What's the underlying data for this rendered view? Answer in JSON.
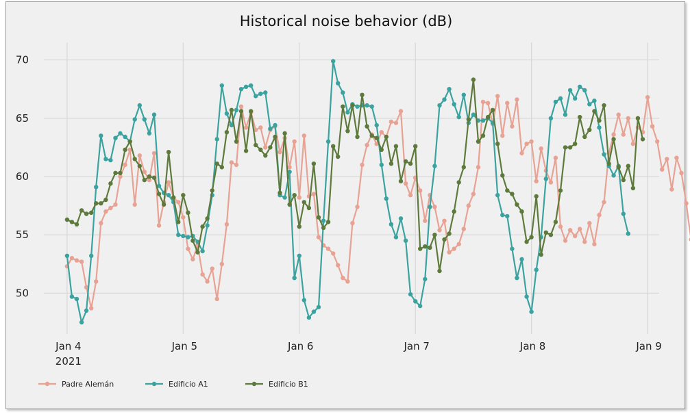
{
  "chart_data": {
    "type": "line",
    "title": "Historical noise behavior (dB)",
    "xlabel": "",
    "ylabel": "",
    "x_start": "2021-01-04T00:00",
    "x_step_hours": 1,
    "xlim_days": [
      -0.2,
      5.1
    ],
    "ylim": [
      46.5,
      71.5
    ],
    "grid": true,
    "legend_position": "bottom-left",
    "x_ticks": [
      {
        "value": 0,
        "label": "Jan 4",
        "sublabel": "2021"
      },
      {
        "value": 1,
        "label": "Jan 5",
        "sublabel": ""
      },
      {
        "value": 2,
        "label": "Jan 6",
        "sublabel": ""
      },
      {
        "value": 3,
        "label": "Jan 7",
        "sublabel": ""
      },
      {
        "value": 4,
        "label": "Jan 8",
        "sublabel": ""
      },
      {
        "value": 5,
        "label": "Jan 9",
        "sublabel": ""
      }
    ],
    "y_ticks": [
      {
        "value": 50,
        "label": "50"
      },
      {
        "value": 55,
        "label": "55"
      },
      {
        "value": 60,
        "label": "60"
      },
      {
        "value": 65,
        "label": "65"
      },
      {
        "value": 70,
        "label": "70"
      }
    ],
    "series": [
      {
        "name": "Padre Alemán",
        "color": "#e8a294",
        "values": [
          52.3,
          53.0,
          52.8,
          52.7,
          50.5,
          48.7,
          51.0,
          56.0,
          57.0,
          57.3,
          57.6,
          60.0,
          61.0,
          62.3,
          57.6,
          61.8,
          60.4,
          59.7,
          62.0,
          55.8,
          57.8,
          59.5,
          58.2,
          57.8,
          56.5,
          53.8,
          52.9,
          54.1,
          51.6,
          51.0,
          52.1,
          49.5,
          52.5,
          55.9,
          61.2,
          61.0,
          66.0,
          64.2,
          65.5,
          64.0,
          64.2,
          62.5,
          64.0,
          64.3,
          62.1,
          63.3,
          60.8,
          63.0,
          58.2,
          63.5,
          58.3,
          58.5,
          54.8,
          54.1,
          53.8,
          53.4,
          52.4,
          51.3,
          51.0,
          56.0,
          57.4,
          61.0,
          62.7,
          63.6,
          62.8,
          63.8,
          63.4,
          64.7,
          64.6,
          65.6,
          59.4,
          58.4,
          59.9,
          58.8,
          56.2,
          58.4,
          57.4,
          55.4,
          56.2,
          53.5,
          53.8,
          54.2,
          55.5,
          57.5,
          58.5,
          60.8,
          66.4,
          66.3,
          64.5,
          66.9,
          63.5,
          66.3,
          64.3,
          66.6,
          62.0,
          62.8,
          63.0,
          59.6,
          62.4,
          60.5,
          59.5,
          61.6,
          55.7,
          54.5,
          55.4,
          54.9,
          55.5,
          54.4,
          56.0,
          54.2,
          56.7,
          57.8,
          62.0,
          63.6,
          65.3,
          63.6,
          65.0,
          62.8,
          64.2,
          63.8,
          66.8,
          64.3,
          63.0,
          60.6,
          61.5,
          58.9,
          61.6,
          60.3,
          57.7,
          54.6
        ]
      },
      {
        "name": "Edificio A1",
        "color": "#3aa39f",
        "values": [
          53.2,
          49.7,
          49.5,
          47.5,
          48.5,
          53.2,
          59.1,
          63.5,
          61.5,
          61.4,
          63.3,
          63.7,
          63.4,
          63.0,
          64.9,
          66.1,
          64.9,
          63.7,
          65.3,
          59.2,
          58.6,
          58.4,
          57.8,
          55.0,
          54.9,
          54.8,
          54.9,
          54.4,
          53.6,
          55.8,
          58.4,
          63.2,
          67.8,
          65.4,
          64.4,
          65.7,
          67.5,
          67.7,
          67.8,
          66.9,
          67.1,
          67.2,
          64.1,
          64.4,
          58.4,
          58.2,
          60.4,
          51.3,
          53.2,
          49.4,
          47.9,
          48.4,
          48.8,
          56.2,
          63.0,
          69.9,
          68.0,
          67.2,
          65.5,
          66.2,
          66.0,
          66.1,
          66.1,
          66.0,
          64.4,
          61.0,
          58.1,
          55.9,
          54.8,
          56.4,
          54.5,
          49.9,
          49.3,
          48.9,
          51.2,
          57.4,
          60.9,
          66.1,
          66.6,
          67.5,
          66.2,
          65.1,
          67.0,
          64.6,
          65.3,
          64.8,
          64.8,
          65.0,
          64.6,
          58.4,
          56.7,
          56.6,
          53.8,
          51.3,
          52.9,
          49.7,
          48.4,
          52.0,
          54.8,
          59.8,
          65.0,
          66.4,
          66.7,
          65.3,
          67.4,
          66.7,
          67.7,
          67.4,
          66.2,
          66.5,
          64.2,
          61.9,
          60.9,
          60.1,
          60.9,
          56.8,
          55.1
        ]
      },
      {
        "name": "Edificio B1",
        "color": "#5d7a3c",
        "values": [
          56.3,
          56.1,
          55.9,
          57.1,
          56.8,
          56.9,
          57.7,
          57.7,
          58.0,
          59.4,
          60.3,
          60.3,
          62.3,
          63.0,
          61.5,
          60.9,
          59.7,
          60.0,
          59.9,
          58.5,
          57.6,
          62.1,
          58.2,
          56.1,
          58.4,
          56.9,
          54.5,
          53.5,
          55.7,
          56.4,
          58.8,
          61.1,
          60.8,
          63.8,
          65.7,
          63.0,
          65.6,
          62.2,
          65.6,
          62.7,
          62.3,
          61.8,
          62.5,
          63.4,
          58.6,
          63.7,
          57.6,
          58.4,
          55.7,
          57.8,
          57.3,
          61.1,
          56.5,
          55.6,
          56.1,
          62.6,
          61.7,
          66.0,
          63.9,
          66.1,
          63.4,
          67.0,
          64.3,
          63.5,
          63.3,
          62.3,
          63.4,
          61.1,
          62.6,
          59.6,
          61.3,
          61.1,
          62.6,
          53.8,
          54.0,
          53.9,
          55.0,
          51.9,
          54.6,
          55.1,
          57.0,
          59.5,
          60.8,
          64.9,
          68.3,
          63.0,
          63.5,
          65.1,
          65.7,
          62.8,
          60.1,
          58.8,
          58.5,
          57.6,
          57.0,
          54.4,
          54.8,
          58.3,
          53.3,
          55.2,
          55.0,
          56.1,
          58.8,
          62.5,
          62.5,
          62.8,
          65.1,
          63.4,
          64.0,
          65.6,
          64.8,
          66.1,
          61.1,
          63.2,
          60.8,
          59.7,
          60.9,
          59.0,
          65.0,
          63.2
        ]
      }
    ]
  }
}
